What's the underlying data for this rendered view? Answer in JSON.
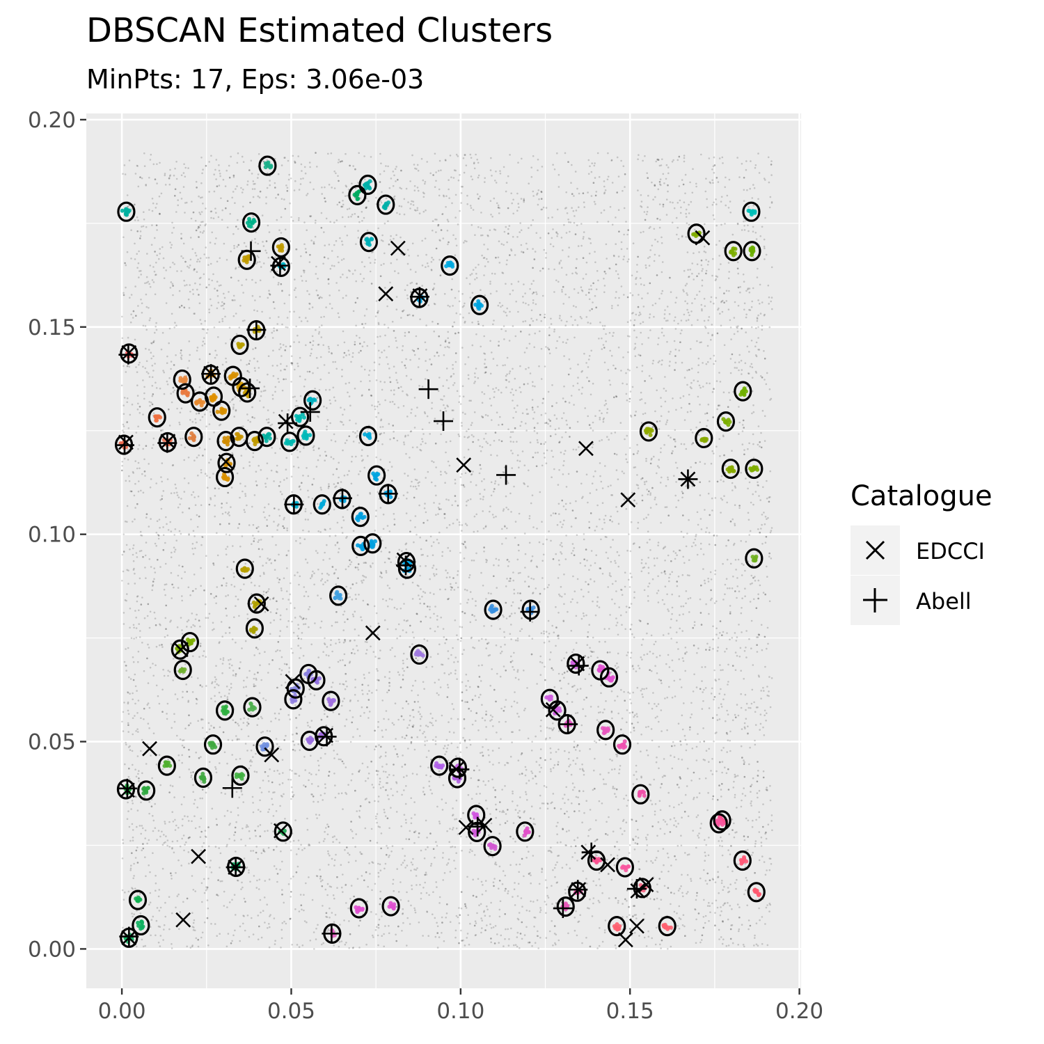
{
  "chart_data": {
    "type": "scatter",
    "title": "DBSCAN Estimated Clusters",
    "subtitle": "MinPts: 17, Eps: 3.06e-03",
    "xlabel": "",
    "ylabel": "",
    "xlim": [
      -0.0105,
      0.2005
    ],
    "ylim": [
      -0.0095,
      0.2015
    ],
    "x_ticks": [
      "0.00",
      "0.05",
      "0.10",
      "0.15",
      "0.20"
    ],
    "y_ticks": [
      "0.00",
      "0.05",
      "0.10",
      "0.15",
      "0.20"
    ],
    "x_tick_values": [
      0,
      0.05,
      0.1,
      0.15,
      0.2
    ],
    "y_tick_values": [
      0,
      0.05,
      0.1,
      0.15,
      0.2
    ],
    "grid": true,
    "background_points": {
      "count": 9000,
      "x_range": [
        0,
        0.192
      ],
      "y_range": [
        0,
        0.192
      ],
      "color": "#000000"
    },
    "legend": {
      "title": "Catalogue",
      "placement": "right",
      "entries": [
        {
          "label": "EDCCI",
          "symbol": "x"
        },
        {
          "label": "Abell",
          "symbol": "+"
        }
      ]
    },
    "clusters": [
      {
        "x": 0.0013,
        "y": 0.1778,
        "color": "#00b0a0"
      },
      {
        "x": 0.043,
        "y": 0.1889,
        "color": "#1cb08a"
      },
      {
        "x": 0.0726,
        "y": 0.1843,
        "color": "#00b0a8"
      },
      {
        "x": 0.0695,
        "y": 0.1818,
        "color": "#00ab60"
      },
      {
        "x": 0.0779,
        "y": 0.1795,
        "color": "#00b0a8"
      },
      {
        "x": 0.0382,
        "y": 0.1752,
        "color": "#00b088"
      },
      {
        "x": 0.0729,
        "y": 0.1705,
        "color": "#00b0b8"
      },
      {
        "x": 0.047,
        "y": 0.1692,
        "color": "#c09a00"
      },
      {
        "x": 0.0369,
        "y": 0.1662,
        "color": "#c09a00"
      },
      {
        "x": 0.047,
        "y": 0.1645,
        "color": "#00b4c8"
      },
      {
        "x": 0.0968,
        "y": 0.1648,
        "color": "#00a8e0"
      },
      {
        "x": 0.0878,
        "y": 0.157,
        "color": "#009fdc"
      },
      {
        "x": 0.1056,
        "y": 0.1553,
        "color": "#00a4e0"
      },
      {
        "x": 0.0397,
        "y": 0.1492,
        "color": "#b8a000"
      },
      {
        "x": 0.0348,
        "y": 0.1457,
        "color": "#b8a000"
      },
      {
        "x": 0.0021,
        "y": 0.1436,
        "color": "#ff6060"
      },
      {
        "x": 0.0262,
        "y": 0.1385,
        "color": "#e08a00"
      },
      {
        "x": 0.0328,
        "y": 0.1382,
        "color": "#d89000"
      },
      {
        "x": 0.0178,
        "y": 0.1373,
        "color": "#e88a40"
      },
      {
        "x": 0.0188,
        "y": 0.134,
        "color": "#e97a40"
      },
      {
        "x": 0.023,
        "y": 0.132,
        "color": "#e88a30"
      },
      {
        "x": 0.0271,
        "y": 0.1332,
        "color": "#e09000"
      },
      {
        "x": 0.0352,
        "y": 0.1355,
        "color": "#d09800"
      },
      {
        "x": 0.037,
        "y": 0.1342,
        "color": "#c89c00"
      },
      {
        "x": 0.0294,
        "y": 0.1298,
        "color": "#d89000"
      },
      {
        "x": 0.0563,
        "y": 0.1323,
        "color": "#00b0c0"
      },
      {
        "x": 0.0526,
        "y": 0.1283,
        "color": "#00b8b0"
      },
      {
        "x": 0.0104,
        "y": 0.1282,
        "color": "#f07040"
      },
      {
        "x": 0.0135,
        "y": 0.1222,
        "color": "#f07050"
      },
      {
        "x": 0.0212,
        "y": 0.1235,
        "color": "#e08040"
      },
      {
        "x": 0.0006,
        "y": 0.1216,
        "color": "#f06a50"
      },
      {
        "x": 0.0307,
        "y": 0.1225,
        "color": "#d08c00"
      },
      {
        "x": 0.0346,
        "y": 0.1235,
        "color": "#c89400"
      },
      {
        "x": 0.0392,
        "y": 0.1225,
        "color": "#c09a00"
      },
      {
        "x": 0.0428,
        "y": 0.1235,
        "color": "#00b0a0"
      },
      {
        "x": 0.0495,
        "y": 0.1223,
        "color": "#00b8b0"
      },
      {
        "x": 0.0543,
        "y": 0.1238,
        "color": "#00b8b8"
      },
      {
        "x": 0.0727,
        "y": 0.1237,
        "color": "#00a8d8"
      },
      {
        "x": 0.0309,
        "y": 0.1172,
        "color": "#d08c00"
      },
      {
        "x": 0.0304,
        "y": 0.1138,
        "color": "#d89000"
      },
      {
        "x": 0.0752,
        "y": 0.1142,
        "color": "#00a4e0"
      },
      {
        "x": 0.0786,
        "y": 0.1097,
        "color": "#00a4e8"
      },
      {
        "x": 0.0507,
        "y": 0.1072,
        "color": "#00b0d0"
      },
      {
        "x": 0.0591,
        "y": 0.1072,
        "color": "#00a8d8"
      },
      {
        "x": 0.065,
        "y": 0.1085,
        "color": "#00a4e0"
      },
      {
        "x": 0.0704,
        "y": 0.1042,
        "color": "#00a0e0"
      },
      {
        "x": 0.0705,
        "y": 0.0972,
        "color": "#009fe0"
      },
      {
        "x": 0.074,
        "y": 0.0978,
        "color": "#00a0e0"
      },
      {
        "x": 0.084,
        "y": 0.0933,
        "color": "#00a8e8"
      },
      {
        "x": 0.0842,
        "y": 0.0917,
        "color": "#00a0e0"
      },
      {
        "x": 0.0363,
        "y": 0.0917,
        "color": "#b8a000"
      },
      {
        "x": 0.0639,
        "y": 0.0852,
        "color": "#40a0e0"
      },
      {
        "x": 0.0398,
        "y": 0.0833,
        "color": "#b0a000"
      },
      {
        "x": 0.1096,
        "y": 0.0818,
        "color": "#3a90e0"
      },
      {
        "x": 0.1207,
        "y": 0.0818,
        "color": "#4090e0"
      },
      {
        "x": 0.0392,
        "y": 0.0773,
        "color": "#a8a000"
      },
      {
        "x": 0.0201,
        "y": 0.074,
        "color": "#7cae00"
      },
      {
        "x": 0.0172,
        "y": 0.0722,
        "color": "#7cae00"
      },
      {
        "x": 0.018,
        "y": 0.0673,
        "color": "#70b030"
      },
      {
        "x": 0.0878,
        "y": 0.071,
        "color": "#a07ae0"
      },
      {
        "x": 0.134,
        "y": 0.0688,
        "color": "#d060e0"
      },
      {
        "x": 0.1412,
        "y": 0.0672,
        "color": "#e050d0"
      },
      {
        "x": 0.1438,
        "y": 0.0655,
        "color": "#e050d0"
      },
      {
        "x": 0.0551,
        "y": 0.0663,
        "color": "#8a80e0"
      },
      {
        "x": 0.0574,
        "y": 0.0648,
        "color": "#9070e0"
      },
      {
        "x": 0.0513,
        "y": 0.0628,
        "color": "#8888e0"
      },
      {
        "x": 0.0506,
        "y": 0.0602,
        "color": "#9080e0"
      },
      {
        "x": 0.0617,
        "y": 0.0598,
        "color": "#a070e0"
      },
      {
        "x": 0.1263,
        "y": 0.0603,
        "color": "#d060e0"
      },
      {
        "x": 0.1285,
        "y": 0.0575,
        "color": "#d060e0"
      },
      {
        "x": 0.0304,
        "y": 0.0575,
        "color": "#30b040"
      },
      {
        "x": 0.0385,
        "y": 0.0583,
        "color": "#50b050"
      },
      {
        "x": 0.1314,
        "y": 0.0542,
        "color": "#e050c0"
      },
      {
        "x": 0.1428,
        "y": 0.0528,
        "color": "#e858c0"
      },
      {
        "x": 0.0554,
        "y": 0.0502,
        "color": "#9a70e0"
      },
      {
        "x": 0.0596,
        "y": 0.0513,
        "color": "#a068e0"
      },
      {
        "x": 0.0269,
        "y": 0.0493,
        "color": "#40a840"
      },
      {
        "x": 0.0422,
        "y": 0.0488,
        "color": "#7090e0"
      },
      {
        "x": 0.1477,
        "y": 0.0493,
        "color": "#f050b0"
      },
      {
        "x": 0.0133,
        "y": 0.0442,
        "color": "#50b030"
      },
      {
        "x": 0.0937,
        "y": 0.0442,
        "color": "#b060e8"
      },
      {
        "x": 0.0992,
        "y": 0.0437,
        "color": "#c060e0"
      },
      {
        "x": 0.099,
        "y": 0.0412,
        "color": "#b060e0"
      },
      {
        "x": 0.024,
        "y": 0.0413,
        "color": "#40a840"
      },
      {
        "x": 0.035,
        "y": 0.0418,
        "color": "#40b040"
      },
      {
        "x": 0.0012,
        "y": 0.0385,
        "color": "#20b040"
      },
      {
        "x": 0.0072,
        "y": 0.0382,
        "color": "#30a840"
      },
      {
        "x": 0.1531,
        "y": 0.0373,
        "color": "#f050a8"
      },
      {
        "x": 0.1046,
        "y": 0.0323,
        "color": "#d058e0"
      },
      {
        "x": 0.1772,
        "y": 0.031,
        "color": "#ff5090"
      },
      {
        "x": 0.1762,
        "y": 0.0303,
        "color": "#f858a0"
      },
      {
        "x": 0.0476,
        "y": 0.0283,
        "color": "#30b060"
      },
      {
        "x": 0.1048,
        "y": 0.0282,
        "color": "#d058d8"
      },
      {
        "x": 0.119,
        "y": 0.0283,
        "color": "#e050c8"
      },
      {
        "x": 0.1094,
        "y": 0.0248,
        "color": "#d058d0"
      },
      {
        "x": 0.1401,
        "y": 0.0213,
        "color": "#f85090"
      },
      {
        "x": 0.1485,
        "y": 0.0197,
        "color": "#f858a0"
      },
      {
        "x": 0.1832,
        "y": 0.0213,
        "color": "#ff5a78"
      },
      {
        "x": 0.0337,
        "y": 0.0198,
        "color": "#00b060"
      },
      {
        "x": 0.1536,
        "y": 0.0147,
        "color": "#f86080"
      },
      {
        "x": 0.1344,
        "y": 0.0138,
        "color": "#f050a8"
      },
      {
        "x": 0.1873,
        "y": 0.0137,
        "color": "#ff5a70"
      },
      {
        "x": 0.0047,
        "y": 0.0118,
        "color": "#10b050"
      },
      {
        "x": 0.07,
        "y": 0.0098,
        "color": "#e050d0"
      },
      {
        "x": 0.0794,
        "y": 0.0103,
        "color": "#e050d0"
      },
      {
        "x": 0.131,
        "y": 0.0102,
        "color": "#e858b8"
      },
      {
        "x": 0.0056,
        "y": 0.0057,
        "color": "#10b060"
      },
      {
        "x": 0.1461,
        "y": 0.0055,
        "color": "#ff6070"
      },
      {
        "x": 0.161,
        "y": 0.0055,
        "color": "#ff6070"
      },
      {
        "x": 0.0621,
        "y": 0.0037,
        "color": "#e060c0"
      },
      {
        "x": 0.0021,
        "y": 0.0027,
        "color": "#10b060"
      },
      {
        "x": 0.1858,
        "y": 0.1778,
        "color": "#00c0b8"
      },
      {
        "x": 0.1696,
        "y": 0.1725,
        "color": "#80ac00"
      },
      {
        "x": 0.1805,
        "y": 0.1683,
        "color": "#7cae00"
      },
      {
        "x": 0.186,
        "y": 0.1683,
        "color": "#6aae00"
      },
      {
        "x": 0.1833,
        "y": 0.1345,
        "color": "#70b000"
      },
      {
        "x": 0.1555,
        "y": 0.1248,
        "color": "#90aa00"
      },
      {
        "x": 0.1783,
        "y": 0.1272,
        "color": "#7cae00"
      },
      {
        "x": 0.1718,
        "y": 0.1232,
        "color": "#88aa00"
      },
      {
        "x": 0.1797,
        "y": 0.1158,
        "color": "#88aa00"
      },
      {
        "x": 0.1866,
        "y": 0.1158,
        "color": "#80ae00"
      },
      {
        "x": 0.1866,
        "y": 0.0942,
        "color": "#70b020"
      }
    ],
    "edcci": [
      [
        0.0021,
        0.1438
      ],
      [
        0.0012,
        0.1222
      ],
      [
        0.0136,
        0.1224
      ],
      [
        0.0263,
        0.1388
      ],
      [
        0.0484,
        0.1272
      ],
      [
        0.0462,
        0.1653
      ],
      [
        0.0815,
        0.169
      ],
      [
        0.0779,
        0.158
      ],
      [
        0.088,
        0.1575
      ],
      [
        0.1009,
        0.1167
      ],
      [
        0.137,
        0.1207
      ],
      [
        0.1494,
        0.1083
      ],
      [
        0.1671,
        0.1133
      ],
      [
        0.1714,
        0.1715
      ],
      [
        0.0833,
        0.0938
      ],
      [
        0.0307,
        0.1175
      ],
      [
        0.0412,
        0.0832
      ],
      [
        0.0174,
        0.0722
      ],
      [
        0.0741,
        0.0762
      ],
      [
        0.0504,
        0.0645
      ],
      [
        0.0602,
        0.0515
      ],
      [
        0.0082,
        0.0483
      ],
      [
        0.0442,
        0.0468
      ],
      [
        0.0016,
        0.0383
      ],
      [
        0.047,
        0.0285
      ],
      [
        0.0226,
        0.0223
      ],
      [
        0.0335,
        0.0197
      ],
      [
        0.0181,
        0.007
      ],
      [
        0.0021,
        0.0027
      ],
      [
        0.1016,
        0.0293
      ],
      [
        0.1071,
        0.0298
      ],
      [
        0.1344,
        0.0688
      ],
      [
        0.1273,
        0.0577
      ],
      [
        0.1377,
        0.0233
      ],
      [
        0.1434,
        0.0203
      ],
      [
        0.1548,
        0.0155
      ],
      [
        0.1523,
        0.014
      ],
      [
        0.1348,
        0.0143
      ],
      [
        0.152,
        0.0055
      ],
      [
        0.1487,
        0.0022
      ],
      [
        0.0987,
        0.0433
      ]
    ],
    "abell": [
      [
        0.0019,
        0.1433
      ],
      [
        0.0008,
        0.1215
      ],
      [
        0.0134,
        0.122
      ],
      [
        0.0263,
        0.1387
      ],
      [
        0.0378,
        0.1352
      ],
      [
        0.0397,
        0.1493
      ],
      [
        0.0381,
        0.1683
      ],
      [
        0.0467,
        0.1648
      ],
      [
        0.0879,
        0.1573
      ],
      [
        0.0905,
        0.135
      ],
      [
        0.0949,
        0.1273
      ],
      [
        0.0489,
        0.1268
      ],
      [
        0.0556,
        0.1295
      ],
      [
        0.0508,
        0.1072
      ],
      [
        0.0651,
        0.1087
      ],
      [
        0.0786,
        0.1098
      ],
      [
        0.1134,
        0.1143
      ],
      [
        0.1671,
        0.1133
      ],
      [
        0.0838,
        0.0925
      ],
      [
        0.1205,
        0.0813
      ],
      [
        0.1349,
        0.0683
      ],
      [
        0.1317,
        0.0542
      ],
      [
        0.0605,
        0.0512
      ],
      [
        0.0326,
        0.0388
      ],
      [
        0.0016,
        0.0387
      ],
      [
        0.0336,
        0.0197
      ],
      [
        0.0997,
        0.0433
      ],
      [
        0.105,
        0.0295
      ],
      [
        0.1302,
        0.0098
      ],
      [
        0.1346,
        0.0143
      ],
      [
        0.152,
        0.0145
      ],
      [
        0.1386,
        0.0233
      ],
      [
        0.0619,
        0.0037
      ],
      [
        0.0021,
        0.003
      ]
    ]
  }
}
